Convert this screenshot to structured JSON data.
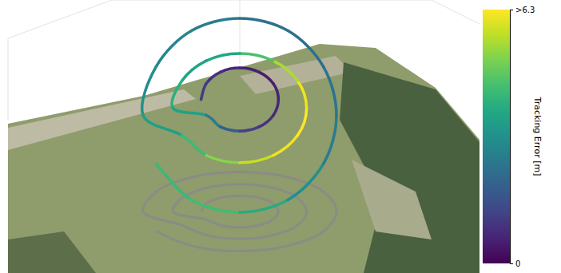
{
  "chart_data": {
    "type": "trajectory3d",
    "x": [
      -47.6,
      -27.5,
      0,
      27.5,
      47.6,
      55,
      47.6,
      27.5,
      0,
      -27.5,
      -47.6,
      -55,
      -32.9,
      -19,
      0,
      19,
      32.9,
      38,
      32.9,
      19,
      0,
      -19,
      -32.9,
      -38,
      -19.1,
      -11,
      0,
      11,
      19.1,
      22,
      19.1,
      11,
      0,
      -11,
      -19.1,
      -22
    ],
    "y": [
      -27.5,
      -47.6,
      -55,
      -47.6,
      -27.5,
      0,
      27.5,
      47.6,
      55,
      47.6,
      27.5,
      0,
      -19,
      -32.9,
      -38,
      -32.9,
      -19,
      0,
      19,
      32.9,
      38,
      32.9,
      19,
      0,
      -11,
      -19.1,
      -22,
      -19.1,
      -11,
      0,
      11,
      19.1,
      22,
      19.1,
      11,
      0
    ],
    "z": [
      47,
      32,
      27,
      32,
      47,
      67,
      87,
      102,
      107,
      102,
      87,
      67,
      62.5,
      55.5,
      53,
      55.5,
      62.5,
      72,
      81.5,
      88.5,
      91,
      88.5,
      81.5,
      72,
      72.5,
      68.5,
      67,
      68.5,
      72.5,
      78,
      83.5,
      87.5,
      89,
      87.5,
      83.5,
      78
    ],
    "values": [
      4.0,
      4.5,
      4.2,
      3.5,
      2.8,
      2.5,
      2.3,
      2.2,
      2.5,
      2.8,
      3.0,
      3.3,
      3.8,
      4.8,
      5.5,
      6.0,
      6.3,
      6.3,
      6.0,
      5.0,
      4.0,
      3.5,
      3.8,
      4.2,
      3.0,
      2.2,
      1.5,
      1.0,
      0.8,
      0.6,
      0.5,
      0.5,
      0.6,
      0.8,
      1.0,
      1.2
    ],
    "colorbar_title": "Tracking Error [m]",
    "color_range": [
      0,
      6.3
    ],
    "color_ticks": [
      0,
      {
        "value": 6.3,
        "label": ">6.3"
      }
    ]
  }
}
